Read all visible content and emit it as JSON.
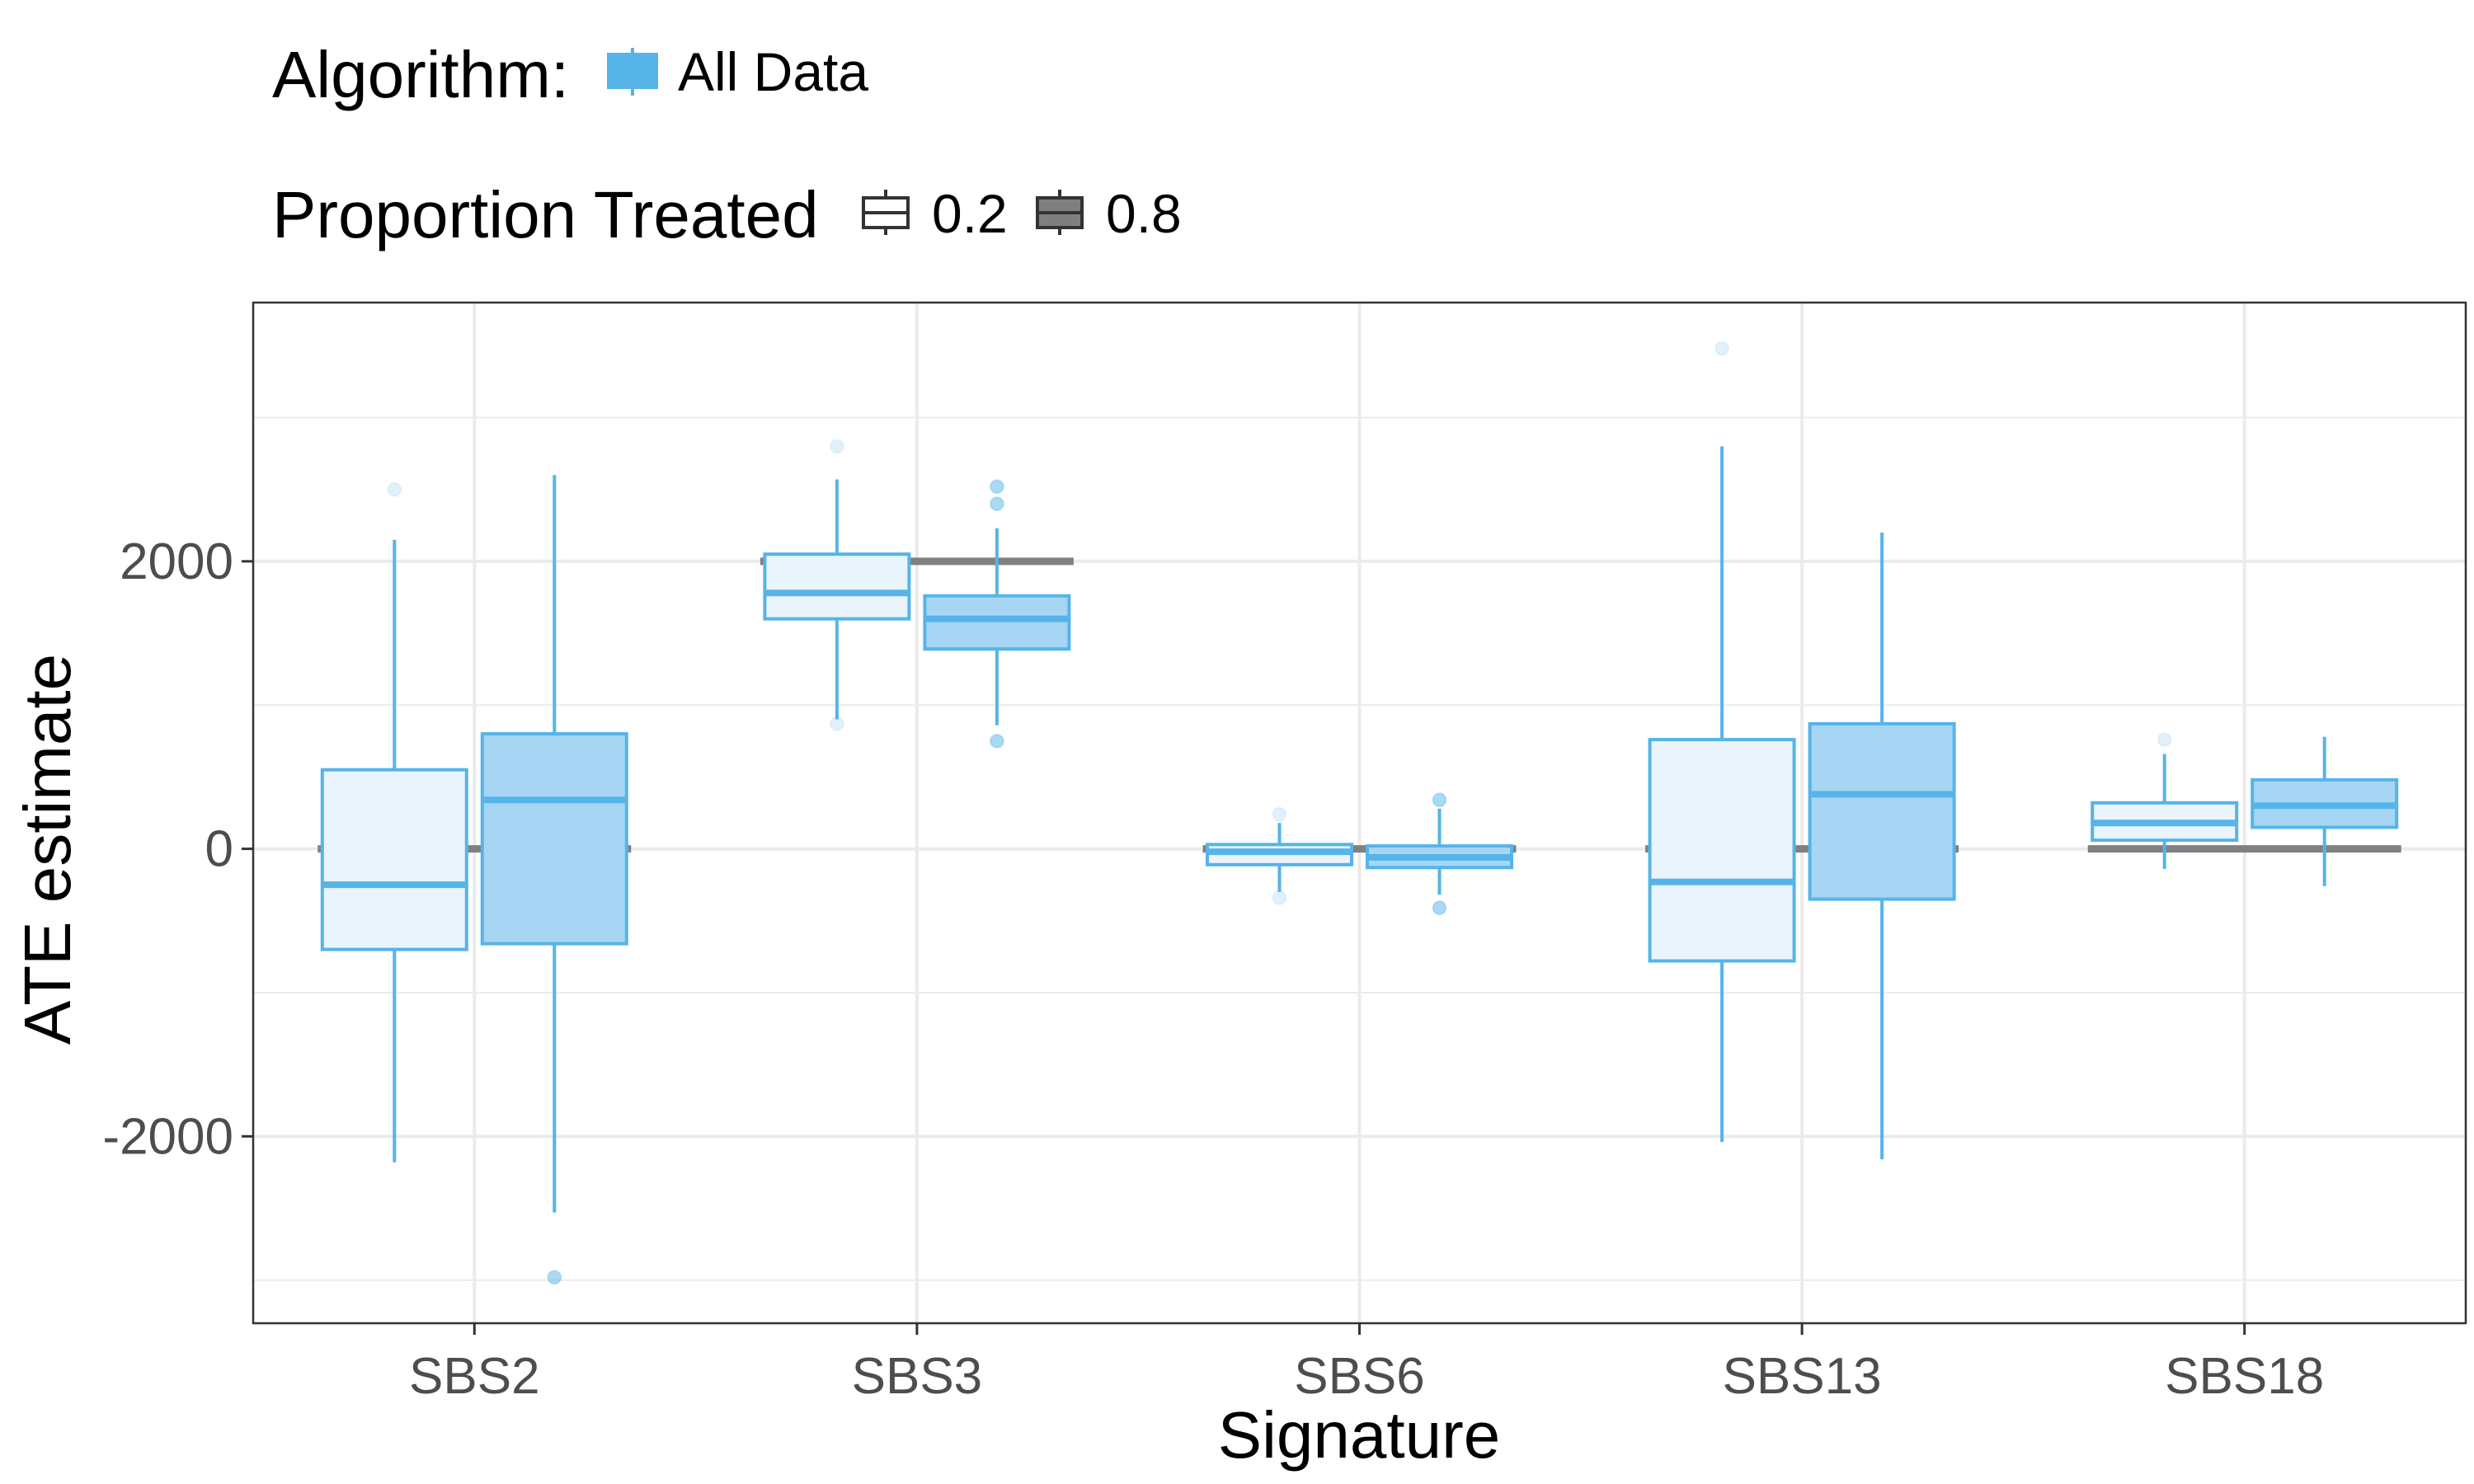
{
  "legend": {
    "algorithm_title": "Algorithm:",
    "algorithm_label": "All Data",
    "proportion_title": "Proportion Treated",
    "proportion_labels": [
      "0.2",
      "0.8"
    ]
  },
  "colors": {
    "stroke": "#56b4e9",
    "fill_low": "#eaf4fc",
    "fill_high": "#a6d6f4",
    "reference_line": "#808080",
    "grid": "#ebebeb",
    "panel_border": "#333333"
  },
  "chart_data": {
    "type": "boxplot",
    "xlabel": "Signature",
    "ylabel": "ATE estimate",
    "categories": [
      "SBS2",
      "SBS3",
      "SBS6",
      "SBS13",
      "SBS18"
    ],
    "yticks": [
      -2000,
      0,
      2000
    ],
    "ylim": [
      -3300,
      3800
    ],
    "grid": true,
    "legend_position": "top",
    "groups": [
      {
        "name": "0.2",
        "boxes": [
          {
            "category": "SBS2",
            "q1": -700,
            "median": -250,
            "q3": 550,
            "whisker_low": -2180,
            "whisker_high": 2150,
            "outliers": [
              2500
            ]
          },
          {
            "category": "SBS3",
            "q1": 1600,
            "median": 1780,
            "q3": 2050,
            "whisker_low": 900,
            "whisker_high": 2570,
            "outliers": [
              2800,
              870
            ]
          },
          {
            "category": "SBS6",
            "q1": -110,
            "median": -20,
            "q3": 30,
            "whisker_low": -300,
            "whisker_high": 180,
            "outliers": [
              240,
              -340
            ]
          },
          {
            "category": "SBS13",
            "q1": -780,
            "median": -230,
            "q3": 760,
            "whisker_low": -2040,
            "whisker_high": 2800,
            "outliers": [
              3480
            ]
          },
          {
            "category": "SBS18",
            "q1": 60,
            "median": 180,
            "q3": 320,
            "whisker_low": -140,
            "whisker_high": 660,
            "outliers": [
              760
            ]
          }
        ]
      },
      {
        "name": "0.8",
        "boxes": [
          {
            "category": "SBS2",
            "q1": -660,
            "median": 340,
            "q3": 800,
            "whisker_low": -2530,
            "whisker_high": 2600,
            "outliers": [
              -2980
            ]
          },
          {
            "category": "SBS3",
            "q1": 1390,
            "median": 1600,
            "q3": 1760,
            "whisker_low": 860,
            "whisker_high": 2230,
            "outliers": [
              2400,
              2520,
              750
            ]
          },
          {
            "category": "SBS6",
            "q1": -130,
            "median": -60,
            "q3": 20,
            "whisker_low": -320,
            "whisker_high": 280,
            "outliers": [
              340,
              -410
            ]
          },
          {
            "category": "SBS13",
            "q1": -350,
            "median": 380,
            "q3": 870,
            "whisker_low": -2160,
            "whisker_high": 2200,
            "outliers": []
          },
          {
            "category": "SBS18",
            "q1": 150,
            "median": 300,
            "q3": 480,
            "whisker_low": -260,
            "whisker_high": 780,
            "outliers": []
          }
        ]
      }
    ],
    "reference_values": [
      {
        "category": "SBS2",
        "value": 0
      },
      {
        "category": "SBS3",
        "value": 2000
      },
      {
        "category": "SBS6",
        "value": 0
      },
      {
        "category": "SBS13",
        "value": 0
      },
      {
        "category": "SBS18",
        "value": 0
      }
    ]
  }
}
